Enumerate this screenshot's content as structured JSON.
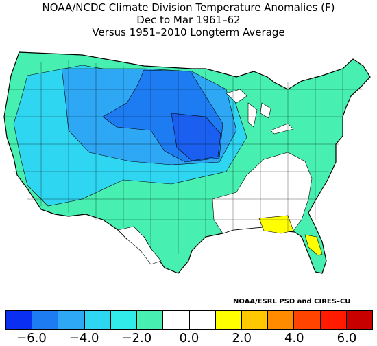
{
  "title": {
    "line1": "NOAA/NCDC Climate Division Temperature Anomalies (F)",
    "line2": "Dec to Mar 1961–62",
    "line3": "Versus 1951–2010 Longterm Average"
  },
  "credit": "NOAA/ESRL PSD and CIRES–CU",
  "legend": {
    "colors": [
      "#0b2ff0",
      "#1d7cf2",
      "#2ea7f4",
      "#2fd6f2",
      "#31eaea",
      "#47f0b0",
      "#ffffff",
      "#ffffff",
      "#ffff00",
      "#ffc800",
      "#ff8c00",
      "#ff4400",
      "#ff1a00",
      "#c80000"
    ],
    "ticks": [
      "−6.0",
      "−4.0",
      "−2.0",
      "0.0",
      "2.0",
      "4.0",
      "6.0"
    ]
  },
  "map_colors": {
    "cold_core": "#1a5ff0",
    "cold": "#2aa0f4",
    "cool": "#2fd6f2",
    "mild_cool": "#47f0b0",
    "neutral": "#ffffff",
    "warm": "#ffff00"
  }
}
